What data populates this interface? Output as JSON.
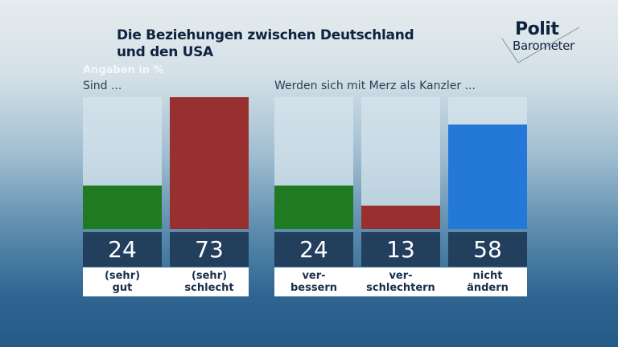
{
  "title_line1": "Die Beziehungen zwischen Deutschland",
  "title_line2": "und den USA",
  "logo": {
    "line1": "Polit",
    "line2": "Barometer"
  },
  "chart_data": [
    {
      "type": "bar",
      "subtitle": "Sind ...",
      "unit_label": "Angaben in %",
      "categories": [
        [
          "(sehr)",
          "gut"
        ],
        [
          "(sehr)",
          "schlecht"
        ]
      ],
      "values": [
        24,
        73
      ],
      "colors": [
        "#1f7a22",
        "#993030"
      ],
      "ylim": [
        0,
        73
      ]
    },
    {
      "type": "bar",
      "subtitle": "Werden sich mit Merz als Kanzler ...",
      "categories": [
        [
          "ver-",
          "bessern"
        ],
        [
          "ver-",
          "schlechtern"
        ],
        [
          "nicht",
          "ändern"
        ]
      ],
      "values": [
        24,
        13,
        58
      ],
      "colors": [
        "#1f7a22",
        "#993030",
        "#2478d8"
      ],
      "ylim": [
        0,
        73
      ]
    }
  ]
}
